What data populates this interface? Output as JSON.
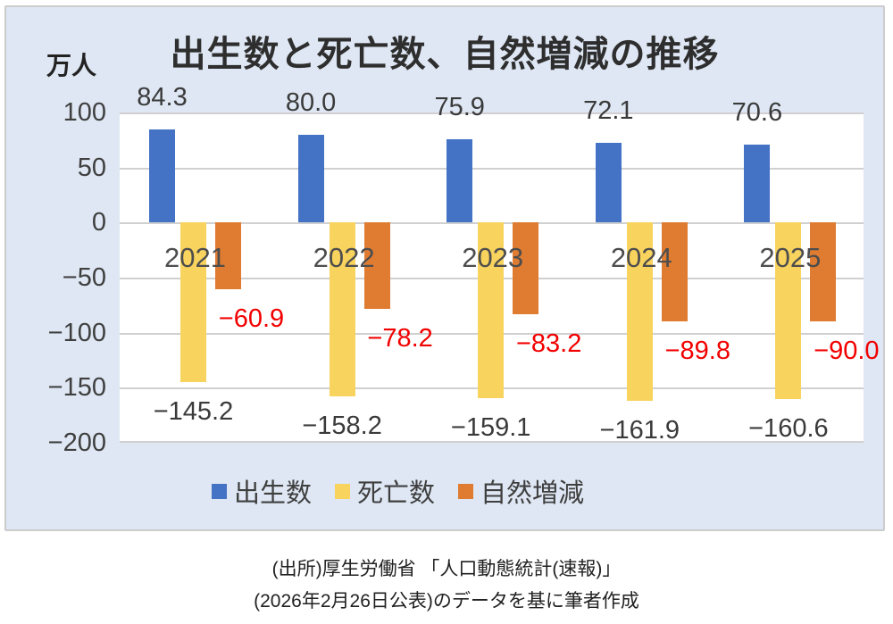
{
  "chart": {
    "title": "出生数と死亡数、自然増減の推移",
    "unit_label": "万人"
  },
  "chart_data": {
    "type": "bar",
    "title": "出生数と死亡数、自然増減の推移",
    "ylabel": "万人",
    "categories": [
      "2021",
      "2022",
      "2023",
      "2024",
      "2025"
    ],
    "series": [
      {
        "key": "births",
        "name": "出生数",
        "color": "#4472c4",
        "values": [
          84.3,
          80.0,
          75.9,
          72.1,
          70.6
        ],
        "labels": [
          "84.3",
          "80.0",
          "75.9",
          "72.1",
          "70.6"
        ],
        "label_color": "#3a3a3a"
      },
      {
        "key": "deaths",
        "name": "死亡数",
        "color": "#f8d35e",
        "values": [
          -145.2,
          -158.2,
          -159.1,
          -161.9,
          -160.6
        ],
        "labels": [
          "−145.2",
          "−158.2",
          "−159.1",
          "−161.9",
          "−160.6"
        ],
        "label_color": "#3a3a3a"
      },
      {
        "key": "natural-change",
        "name": "自然増減",
        "color": "#df7c31",
        "values": [
          -60.9,
          -78.2,
          -83.2,
          -89.8,
          -90.0
        ],
        "labels": [
          "−60.9",
          "−78.2",
          "−83.2",
          "−89.8",
          "−90.0"
        ],
        "label_color": "#f20000"
      }
    ],
    "y_axis": {
      "min": -200,
      "max": 100,
      "tick_step": 50,
      "tick_labels": [
        "100",
        "50",
        "0",
        "−50",
        "−100",
        "−150",
        "−200"
      ]
    },
    "grid": true,
    "legend_position": "bottom"
  },
  "caption": {
    "line1": "(出所)厚生労働省 「人口動態統計(速報)」",
    "line2": "(2026年2月26日公表)のデータを基に筆者作成"
  },
  "colors": {
    "card_background": "#dee7f3",
    "plot_background": "#ffffff",
    "gridline": "#d0d0d0",
    "births_bar": "#4472c4",
    "deaths_bar": "#f8d35e",
    "natural_change_bar": "#df7c31",
    "negative_highlight": "#f20000"
  }
}
